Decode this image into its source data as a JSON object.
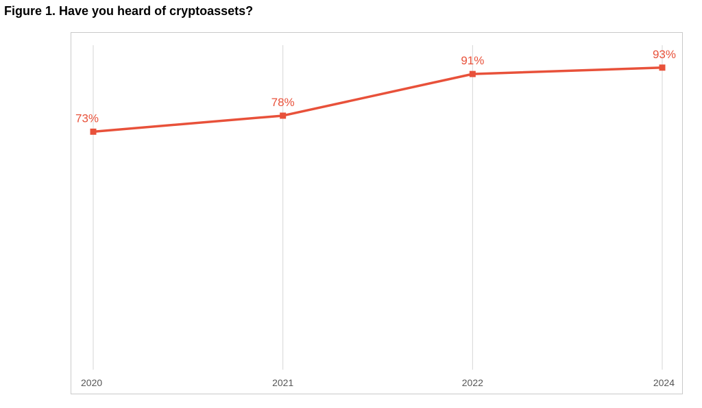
{
  "title": "Figure 1. Have you heard of cryptoassets?",
  "chart_data": {
    "type": "line",
    "categories": [
      "2020",
      "2021",
      "2022",
      "2024"
    ],
    "values": [
      73,
      78,
      91,
      93
    ],
    "data_labels": [
      "73%",
      "78%",
      "91%",
      "93%"
    ],
    "title": "Figure 1. Have you heard of cryptoassets?",
    "xlabel": "",
    "ylabel": "",
    "ylim": [
      0,
      100
    ],
    "grid": "vertical",
    "legend": "none",
    "line_color": "#e8513a",
    "gridline_color": "#d5d5d5"
  }
}
